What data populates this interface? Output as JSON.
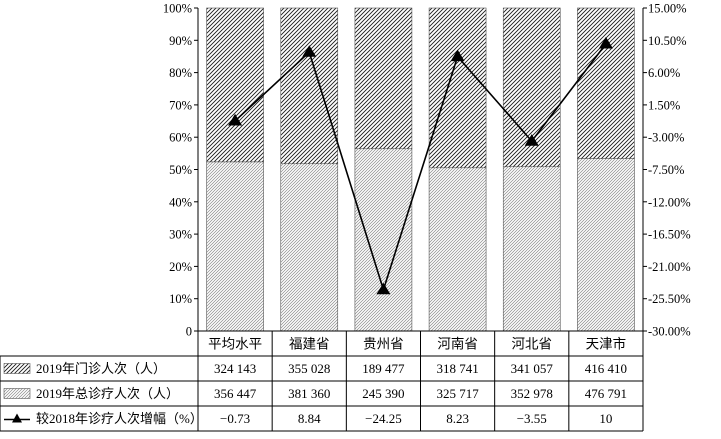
{
  "chart_data": {
    "type": "bar",
    "stacked_percent": true,
    "categories": [
      "平均水平",
      "福建省",
      "贵州省",
      "河南省",
      "河北省",
      "天津市"
    ],
    "series": [
      {
        "name": "2019年门诊人次（人）",
        "kind": "bar",
        "axis": "left",
        "pattern": "dense-diagonal",
        "values": [
          324143,
          355028,
          189477,
          318741,
          341057,
          416410
        ],
        "labels": [
          "324 143",
          "355 028",
          "189 477",
          "318 741",
          "341 057",
          "416 410"
        ]
      },
      {
        "name": "2019年总诊疗人次（人）",
        "kind": "bar",
        "axis": "left",
        "pattern": "light-diagonal",
        "values": [
          356447,
          381360,
          245390,
          325717,
          352978,
          476791
        ],
        "labels": [
          "356 447",
          "381 360",
          "245 390",
          "325 717",
          "352 978",
          "476 791"
        ]
      },
      {
        "name": "较2018年诊疗人次增幅（%）",
        "kind": "line",
        "axis": "right",
        "marker": "triangle",
        "values": [
          -0.73,
          8.84,
          -24.25,
          8.23,
          -3.55,
          10
        ],
        "labels": [
          "−0.73",
          "8.84",
          "−24.25",
          "8.23",
          "−3.55",
          "10"
        ]
      }
    ],
    "y_left": {
      "ticks": [
        "0",
        "10%",
        "20%",
        "30%",
        "40%",
        "50%",
        "60%",
        "70%",
        "80%",
        "90%",
        "100%"
      ],
      "min": 0,
      "max": 100
    },
    "y_right": {
      "ticks": [
        "15.00%",
        "10.50%",
        "6.00%",
        "1.50%",
        "-3.00%",
        "-7.50%",
        "-12.00%",
        "-16.50%",
        "-21.00%",
        "-25.50%",
        "-30.00%"
      ],
      "min": -30,
      "max": 15
    },
    "grid": false,
    "legend": "data-table-left"
  },
  "colors": {
    "ink": "#000000",
    "bar_edge": "#555555",
    "background": "#ffffff"
  }
}
